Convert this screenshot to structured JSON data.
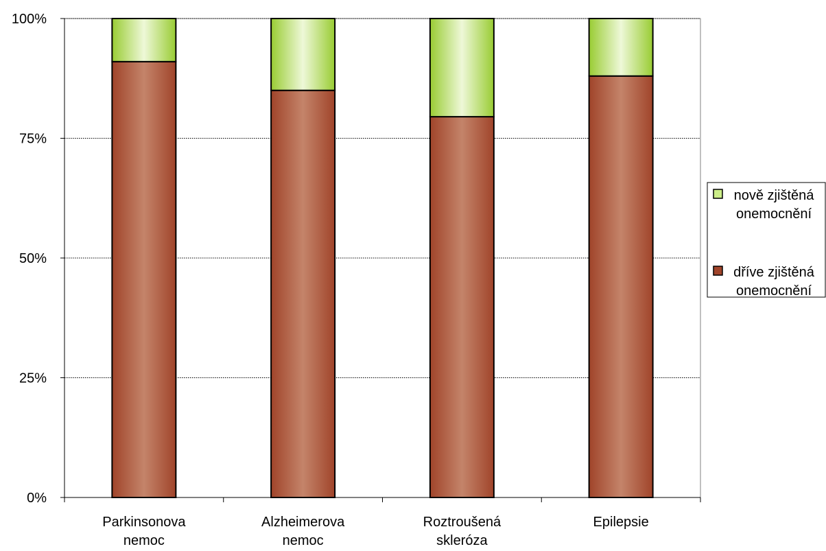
{
  "chart_data": {
    "type": "bar",
    "stacked": true,
    "percent_stacked": true,
    "categories": [
      [
        "Parkinsonova",
        "nemoc"
      ],
      [
        "Alzheimerova",
        "nemoc"
      ],
      [
        "Roztroušená",
        "skleróza"
      ],
      [
        "Epilepsie"
      ]
    ],
    "series": [
      {
        "name": [
          "dříve zjištěná",
          "onemocnění"
        ],
        "values": [
          91,
          85,
          79.5,
          88
        ],
        "color": "#a0442a",
        "highlight": "#c4846a"
      },
      {
        "name": [
          "nově zjištěná",
          "onemocnění"
        ],
        "values": [
          9,
          15,
          20.5,
          12
        ],
        "color": "#99cc33",
        "highlight": "#eef8d8"
      }
    ],
    "ylim": [
      0,
      100
    ],
    "yticks": [
      "0%",
      "25%",
      "50%",
      "75%",
      "100%"
    ],
    "ytick_values": [
      0,
      25,
      50,
      75,
      100
    ],
    "grid": true,
    "legend_position": "right"
  }
}
